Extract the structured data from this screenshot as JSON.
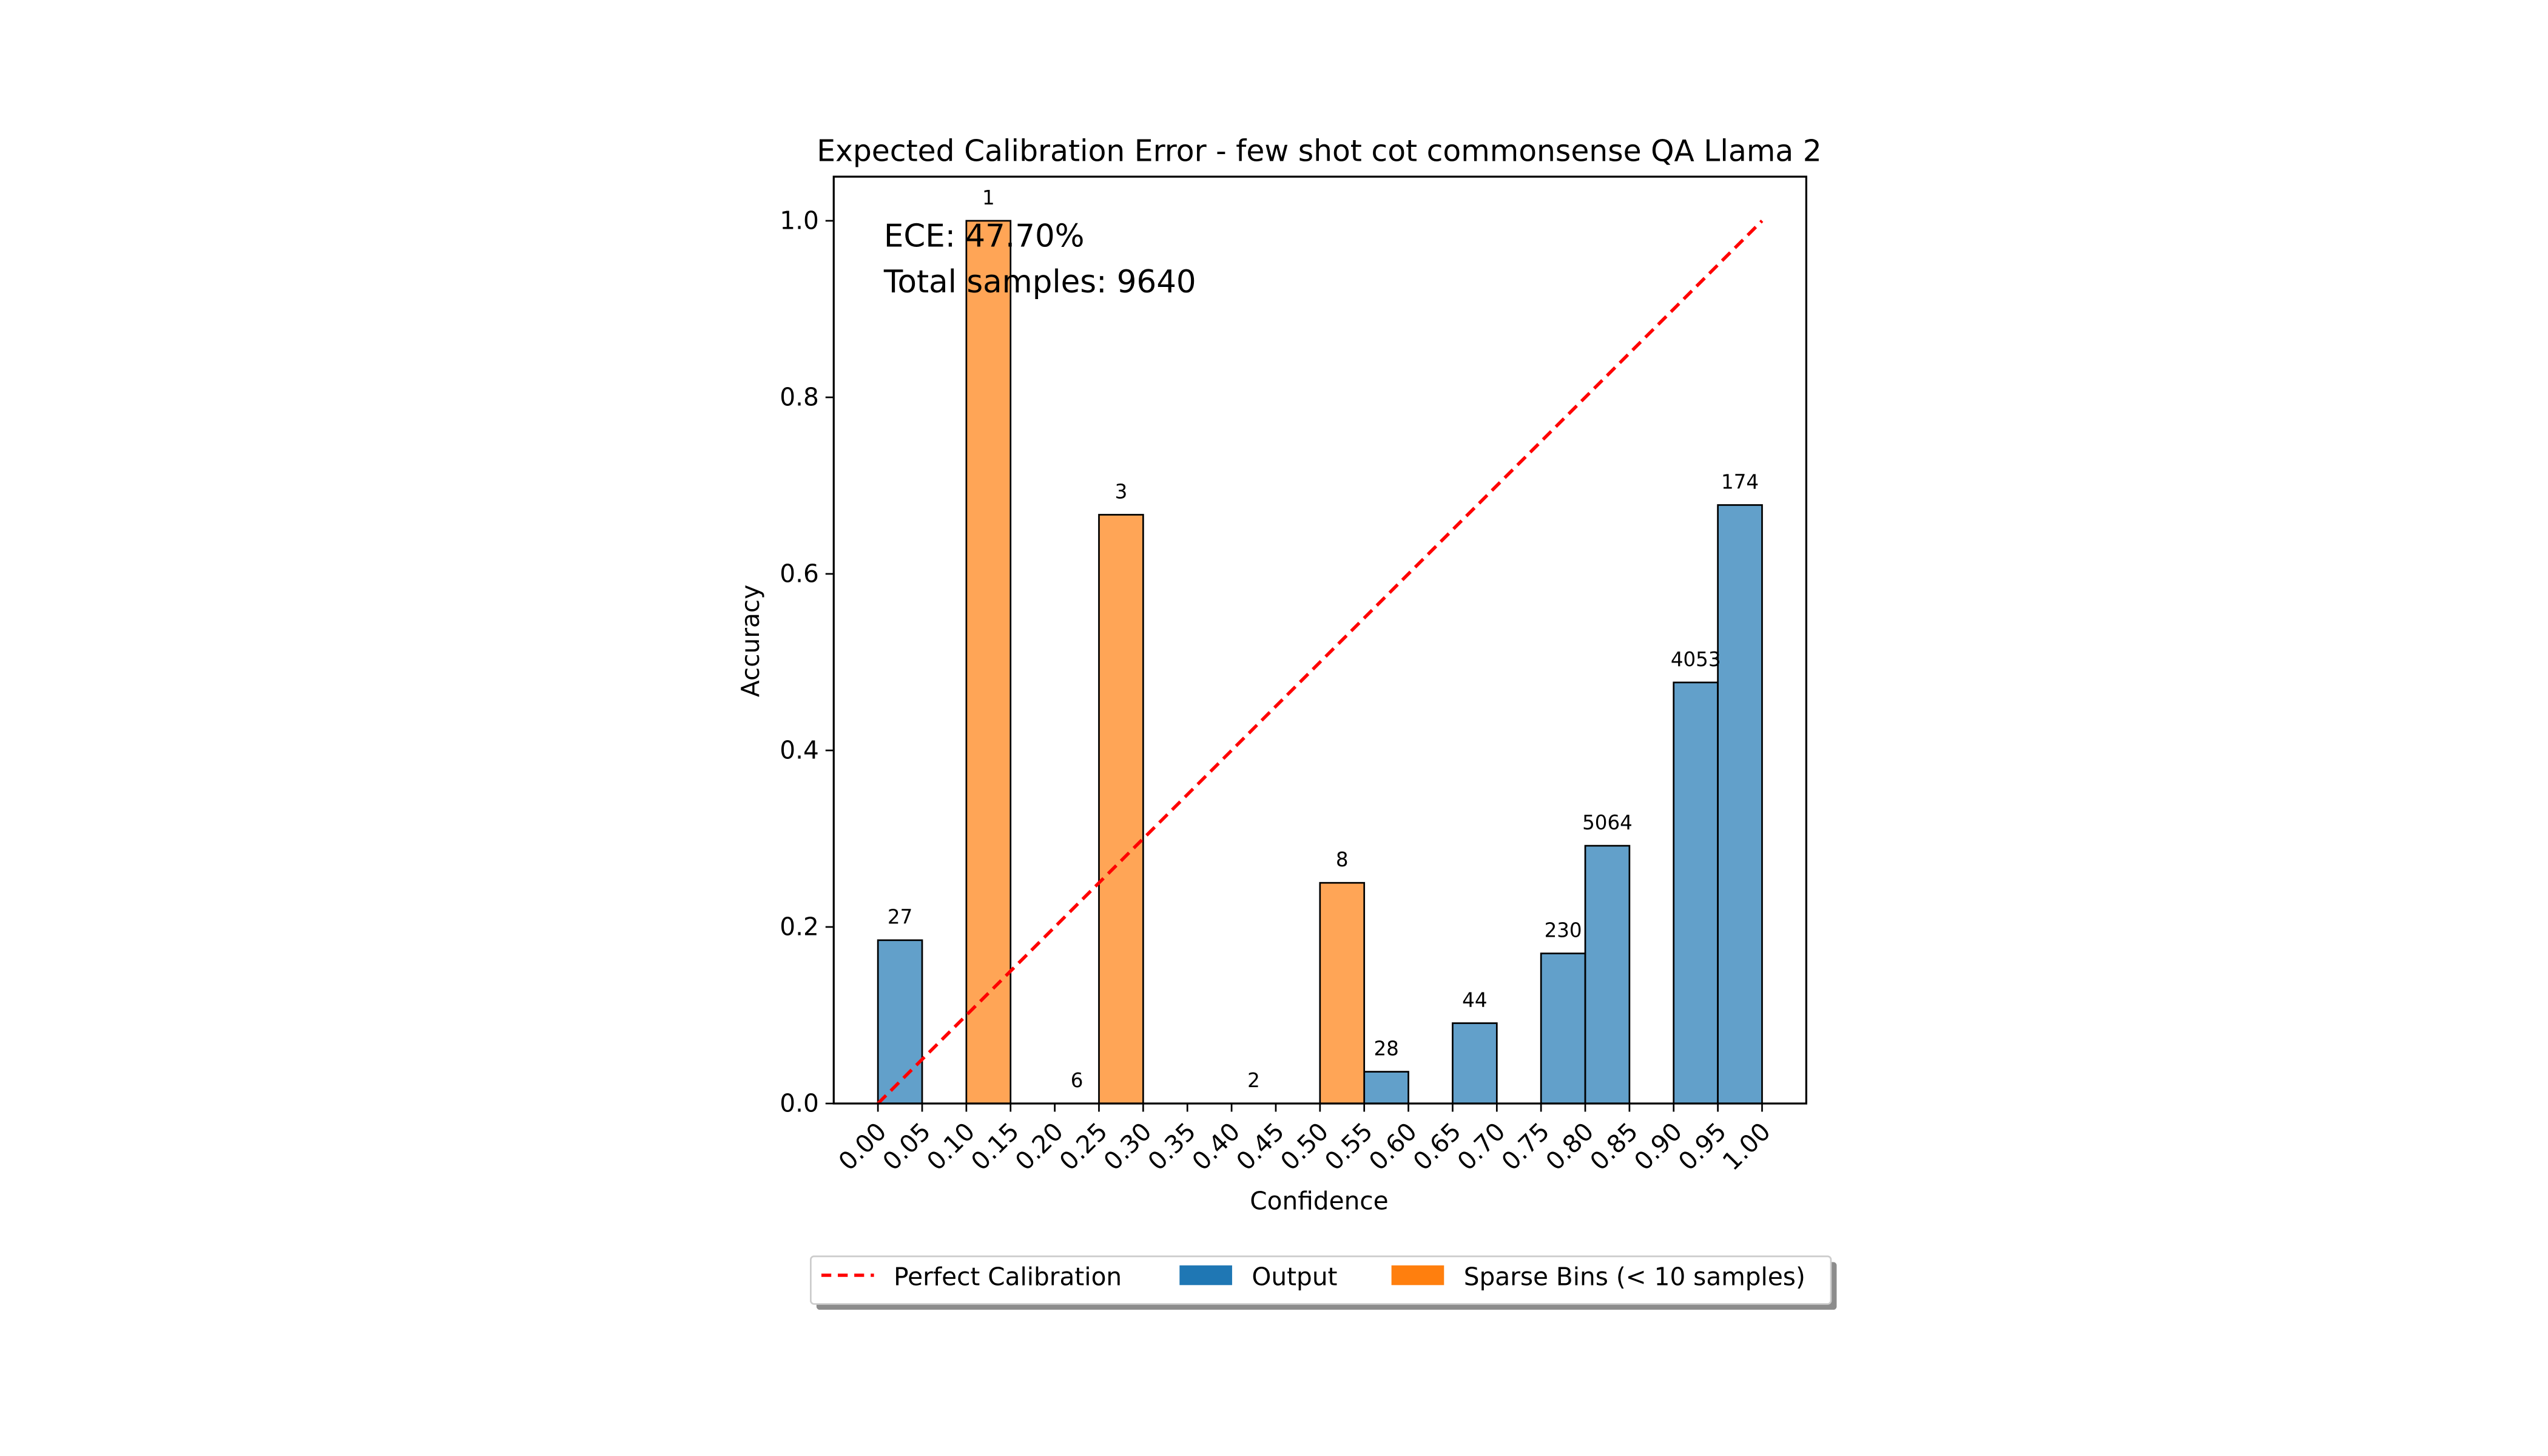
{
  "chart_data": {
    "type": "bar",
    "title": "Expected Calibration Error - few shot cot commonsense QA Llama 2",
    "xlabel": "Confidence",
    "ylabel": "Accuracy",
    "xlim": [
      -0.05,
      1.05
    ],
    "ylim": [
      0,
      1.05
    ],
    "bin_width": 0.05,
    "x_ticks": [
      "0.00",
      "0.05",
      "0.10",
      "0.15",
      "0.20",
      "0.25",
      "0.30",
      "0.35",
      "0.40",
      "0.45",
      "0.50",
      "0.55",
      "0.60",
      "0.65",
      "0.70",
      "0.75",
      "0.80",
      "0.85",
      "0.90",
      "0.95",
      "1.00"
    ],
    "y_ticks": [
      "0.0",
      "0.2",
      "0.4",
      "0.6",
      "0.8",
      "1.0"
    ],
    "annotations": {
      "ece": "ECE: 47.70%",
      "total": "Total samples: 9640"
    },
    "series": [
      {
        "name": "Perfect Calibration",
        "kind": "line",
        "color": "#ff0000",
        "style": "dashed",
        "x": [
          0,
          1
        ],
        "y": [
          0,
          1
        ]
      },
      {
        "name": "Output",
        "kind": "bar",
        "color": "#1f77b4",
        "bins": [
          {
            "x": 0.0,
            "accuracy": 0.185,
            "count": "27"
          },
          {
            "x": 0.55,
            "accuracy": 0.036,
            "count": "28"
          },
          {
            "x": 0.65,
            "accuracy": 0.091,
            "count": "44"
          },
          {
            "x": 0.75,
            "accuracy": 0.17,
            "count": "230"
          },
          {
            "x": 0.8,
            "accuracy": 0.292,
            "count": "5064"
          },
          {
            "x": 0.9,
            "accuracy": 0.477,
            "count": "4053"
          },
          {
            "x": 0.95,
            "accuracy": 0.678,
            "count": "174"
          }
        ]
      },
      {
        "name": "Sparse Bins (< 10 samples)",
        "kind": "bar",
        "color": "#ff7f0e",
        "bins": [
          {
            "x": 0.1,
            "accuracy": 1.0,
            "count": "1"
          },
          {
            "x": 0.2,
            "accuracy": 0.0,
            "count": "6"
          },
          {
            "x": 0.25,
            "accuracy": 0.667,
            "count": "3"
          },
          {
            "x": 0.4,
            "accuracy": 0.0,
            "count": "2"
          },
          {
            "x": 0.5,
            "accuracy": 0.25,
            "count": "8"
          }
        ]
      }
    ],
    "legend": {
      "placement": "bottom-center",
      "items": [
        "Perfect Calibration",
        "Output",
        "Sparse Bins (< 10 samples)"
      ]
    }
  }
}
